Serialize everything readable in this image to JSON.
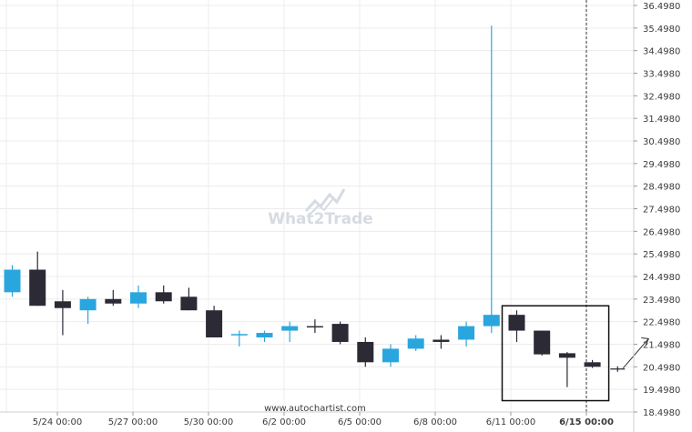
{
  "colors": {
    "bullish": "#2aa6df",
    "bearish": "#2b2a35",
    "grid": "#ececec",
    "text": "#3a3a3a",
    "pattern_box": "#111111",
    "watermark": "#d6dbe2"
  },
  "watermark": {
    "text": "What2Trade"
  },
  "source": "www.autochartist.com",
  "chart_data": {
    "type": "candlestick",
    "y_ticks": [
      "18.4980",
      "19.4980",
      "20.4980",
      "21.4980",
      "22.4980",
      "23.4980",
      "24.4980",
      "25.4980",
      "26.4980",
      "27.4980",
      "28.4980",
      "29.4980",
      "30.4980",
      "31.4980",
      "32.4980",
      "33.4980",
      "34.4980",
      "35.4980",
      "36.4980"
    ],
    "ylim": [
      18.498,
      36.498
    ],
    "x_ticks": [
      {
        "label": "5/24 00:00",
        "index": 2
      },
      {
        "label": "5/27 00:00",
        "index": 5
      },
      {
        "label": "5/30 00:00",
        "index": 8
      },
      {
        "label": "6/2 00:00",
        "index": 11
      },
      {
        "label": "6/5 00:00",
        "index": 14
      },
      {
        "label": "6/8 00:00",
        "index": 17
      },
      {
        "label": "6/11 00:00",
        "index": 20
      },
      {
        "label": "6/15 00:00",
        "index": 23,
        "bold": true
      }
    ],
    "candles": [
      {
        "o": 23.8,
        "h": 25.0,
        "l": 23.6,
        "c": 24.8
      },
      {
        "o": 24.8,
        "h": 25.6,
        "l": 23.2,
        "c": 23.2
      },
      {
        "o": 23.4,
        "h": 23.9,
        "l": 21.9,
        "c": 23.1
      },
      {
        "o": 23.0,
        "h": 23.6,
        "l": 22.4,
        "c": 23.5
      },
      {
        "o": 23.5,
        "h": 23.9,
        "l": 23.2,
        "c": 23.3
      },
      {
        "o": 23.3,
        "h": 24.1,
        "l": 23.1,
        "c": 23.8
      },
      {
        "o": 23.8,
        "h": 24.1,
        "l": 23.3,
        "c": 23.4
      },
      {
        "o": 23.6,
        "h": 24.0,
        "l": 23.0,
        "c": 23.0
      },
      {
        "o": 23.0,
        "h": 23.2,
        "l": 21.8,
        "c": 21.8
      },
      {
        "o": 21.9,
        "h": 22.1,
        "l": 21.4,
        "c": 21.95
      },
      {
        "o": 21.8,
        "h": 22.1,
        "l": 21.6,
        "c": 22.0
      },
      {
        "o": 22.1,
        "h": 22.5,
        "l": 21.6,
        "c": 22.3
      },
      {
        "o": 22.3,
        "h": 22.6,
        "l": 22.0,
        "c": 22.25
      },
      {
        "o": 22.4,
        "h": 22.5,
        "l": 21.5,
        "c": 21.6
      },
      {
        "o": 21.6,
        "h": 21.8,
        "l": 20.5,
        "c": 20.7
      },
      {
        "o": 20.7,
        "h": 21.5,
        "l": 20.5,
        "c": 21.3
      },
      {
        "o": 21.3,
        "h": 21.9,
        "l": 21.2,
        "c": 21.75
      },
      {
        "o": 21.7,
        "h": 21.9,
        "l": 21.3,
        "c": 21.6
      },
      {
        "o": 21.7,
        "h": 22.5,
        "l": 21.4,
        "c": 22.3
      },
      {
        "o": 22.3,
        "h": 35.6,
        "l": 22.0,
        "c": 22.8
      },
      {
        "o": 22.8,
        "h": 23.0,
        "l": 21.6,
        "c": 22.1
      },
      {
        "o": 22.1,
        "h": 22.1,
        "l": 21.0,
        "c": 21.05
      },
      {
        "o": 21.1,
        "h": 21.15,
        "l": 19.6,
        "c": 20.9
      },
      {
        "o": 20.7,
        "h": 20.8,
        "l": 20.45,
        "c": 20.5
      }
    ],
    "projection": {
      "from_index": 24,
      "value": 20.4,
      "target": 21.5
    },
    "pattern_box": {
      "from_index": 20,
      "to_index": 23,
      "y_top": 23.2,
      "y_bottom": 19.0
    },
    "current_time_index": 23.2
  }
}
